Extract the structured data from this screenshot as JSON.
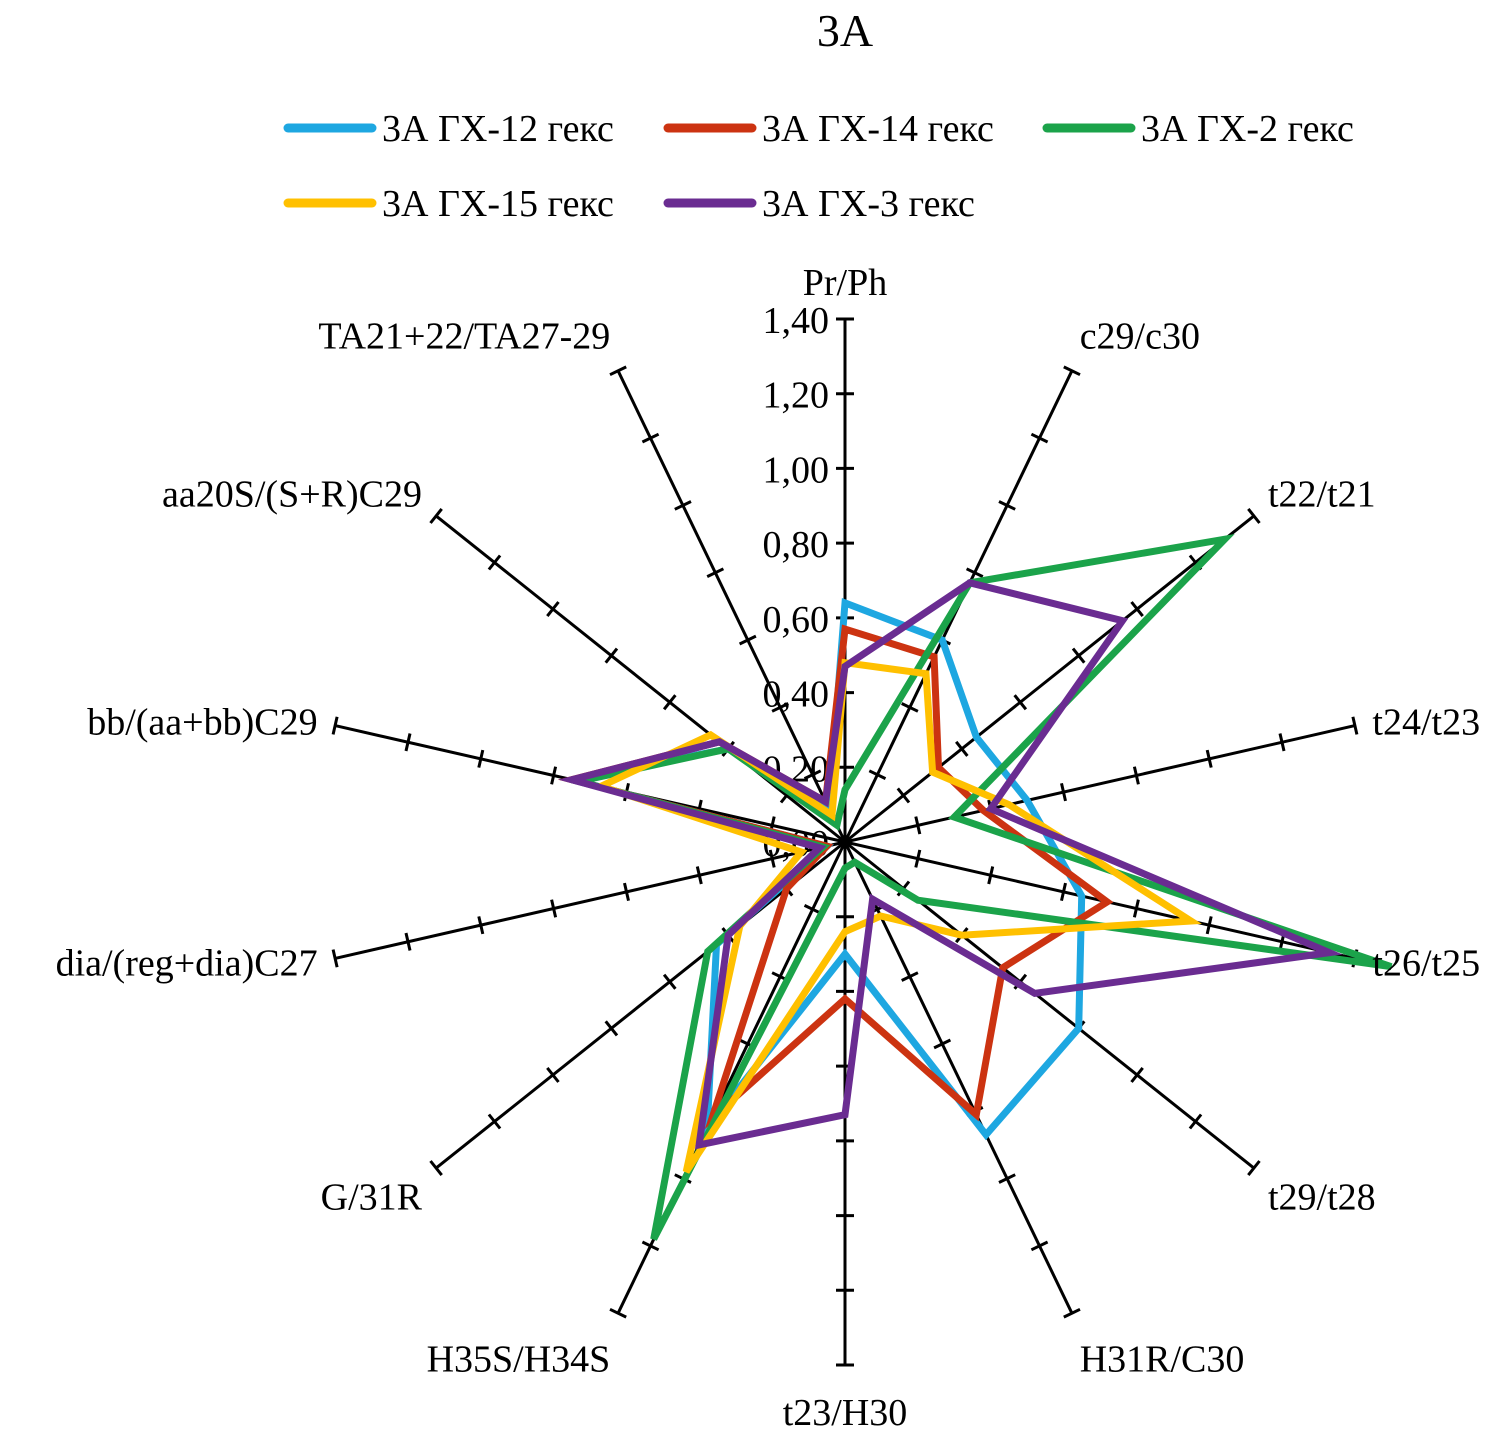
{
  "chart_data": {
    "type": "radar",
    "title": "3А",
    "axes": [
      "Pr/Ph",
      "c29/c30",
      "t22/t21",
      "t24/t23",
      "t26/t25",
      "t29/t28",
      "H31R/C30",
      "t23/H30",
      "H35S/H34S",
      "G/31R",
      "dia/(reg+dia)C27",
      "bb/(aa+bb)C29",
      "aa20S/(S+R)C29",
      "TA21+22/TA27-29"
    ],
    "rlim": [
      0,
      1.4
    ],
    "ticks": [
      "0,00",
      "0,20",
      "0,40",
      "0,60",
      "0,80",
      "1,00",
      "1,20",
      "1,40"
    ],
    "legend_position": "top",
    "series": [
      {
        "name": "3А ГХ-12 гекс",
        "color": "#1ea7e1",
        "values": [
          0.64,
          0.6,
          0.45,
          0.5,
          0.65,
          0.8,
          0.87,
          0.3,
          0.85,
          0.44,
          0.05,
          0.75,
          0.4,
          0.1
        ]
      },
      {
        "name": "3А ГХ-14 гекс",
        "color": "#cc3311",
        "values": [
          0.57,
          0.55,
          0.32,
          0.38,
          0.72,
          0.54,
          0.81,
          0.42,
          0.82,
          0.2,
          0.05,
          0.75,
          0.43,
          0.12
        ]
      },
      {
        "name": "3А ГХ-2 гекс",
        "color": "#1ba34a",
        "values": [
          0.14,
          0.77,
          1.3,
          0.3,
          1.5,
          0.25,
          0.06,
          0.07,
          1.18,
          0.47,
          0.06,
          0.73,
          0.4,
          0.05
        ]
      },
      {
        "name": "3А ГХ-15 гекс",
        "color": "#ffc000",
        "values": [
          0.48,
          0.5,
          0.3,
          0.45,
          0.95,
          0.4,
          0.22,
          0.24,
          0.98,
          0.36,
          0.12,
          0.67,
          0.46,
          0.08
        ]
      },
      {
        "name": "3А ГХ-3 гекс",
        "color": "#6a2c91",
        "values": [
          0.47,
          0.77,
          0.95,
          0.4,
          1.33,
          0.65,
          0.17,
          0.73,
          0.9,
          0.4,
          0.07,
          0.75,
          0.43,
          0.12
        ]
      }
    ]
  }
}
